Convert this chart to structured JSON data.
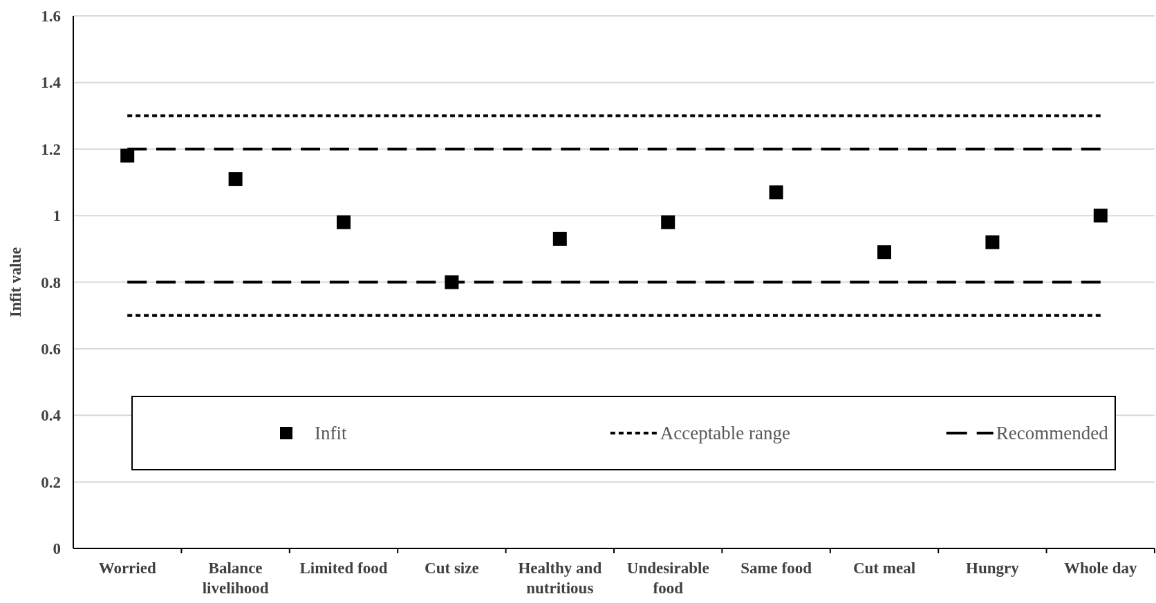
{
  "chart_data": {
    "type": "scatter",
    "ylabel": "Infit value",
    "categories": [
      "Worried",
      "Balance livelihood",
      "Limited food",
      "Cut size",
      "Healthy and nutritious",
      "Undesirable food",
      "Same food",
      "Cut meal",
      "Hungry",
      "Whole day"
    ],
    "series": [
      {
        "name": "Infit",
        "color": "#000000",
        "values": [
          1.18,
          1.11,
          0.98,
          0.8,
          0.93,
          0.98,
          1.07,
          0.89,
          0.92,
          1.0
        ]
      },
      {
        "name": "Acceptable range",
        "type": "line",
        "marker": "none",
        "line_style": "dotted",
        "color": "#000000",
        "values": [
          1.3,
          1.3,
          1.3,
          1.3,
          1.3,
          1.3,
          1.3,
          1.3,
          1.3,
          1.3
        ]
      },
      {
        "type": "line",
        "marker": "none",
        "line_style": "dotted",
        "color": "#000000",
        "values": [
          0.7,
          0.7,
          0.7,
          0.7,
          0.7,
          0.7,
          0.7,
          0.7,
          0.7,
          0.7
        ]
      },
      {
        "name": "Recommended",
        "type": "line",
        "marker": "none",
        "line_style": "dashed",
        "color": "#000000",
        "values": [
          1.2,
          1.2,
          1.2,
          1.2,
          1.2,
          1.2,
          1.2,
          1.2,
          1.2,
          1.2
        ]
      },
      {
        "type": "line",
        "marker": "none",
        "line_style": "dashed",
        "color": "#000000",
        "values": [
          0.8,
          0.8,
          0.8,
          0.8,
          0.8,
          0.8,
          0.8,
          0.8,
          0.8,
          0.8
        ]
      }
    ],
    "ylim": [
      0,
      1.6
    ],
    "yticks": [
      0,
      0.2,
      0.4,
      0.6,
      0.8,
      1,
      1.2,
      1.4,
      1.6
    ],
    "grid": "y",
    "legend": "bottom",
    "marker": "square"
  }
}
